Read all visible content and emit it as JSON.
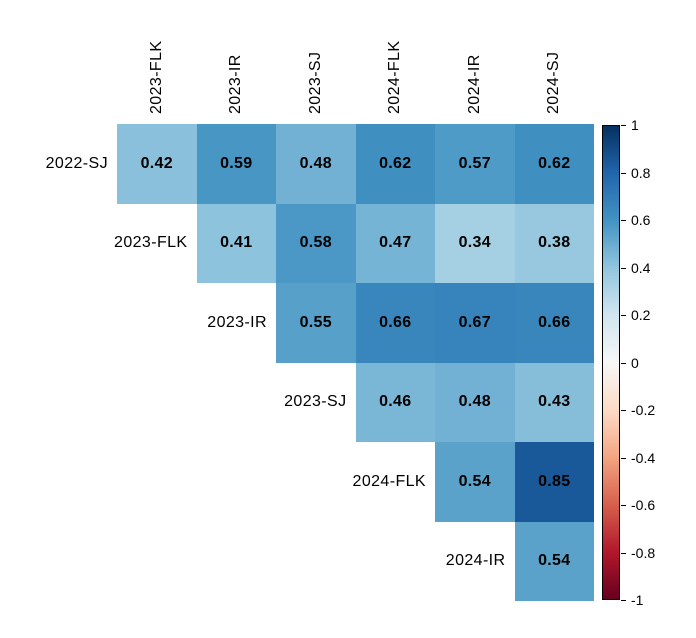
{
  "chart_data": {
    "type": "heatmap",
    "title": "",
    "description": "Upper-triangular correlation matrix heatmap with diverging red-white-blue colorbar",
    "col_labels": [
      "2023-FLK",
      "2023-IR",
      "2023-SJ",
      "2024-FLK",
      "2024-IR",
      "2024-SJ"
    ],
    "row_labels": [
      "2022-SJ",
      "2023-FLK",
      "2023-IR",
      "2023-SJ",
      "2024-FLK",
      "2024-IR"
    ],
    "matrix": [
      [
        0.42,
        0.59,
        0.48,
        0.62,
        0.57,
        0.62
      ],
      [
        null,
        0.41,
        0.58,
        0.47,
        0.34,
        0.38
      ],
      [
        null,
        null,
        0.55,
        0.66,
        0.67,
        0.66
      ],
      [
        null,
        null,
        null,
        0.46,
        0.48,
        0.43
      ],
      [
        null,
        null,
        null,
        null,
        0.54,
        0.85
      ],
      [
        null,
        null,
        null,
        null,
        null,
        0.54
      ]
    ],
    "value_decimals": 2,
    "grid": false,
    "legend_position": "right",
    "colorbar": {
      "range": [
        -1,
        1
      ],
      "tick_labels": [
        "1",
        "0.8",
        "0.6",
        "0.4",
        "0.2",
        "0",
        "-0.2",
        "-0.4",
        "-0.6",
        "-0.8",
        "-1"
      ]
    },
    "colormap": {
      "name": "RdBu",
      "anchors": [
        {
          "value": -1.0,
          "color": "#67001f"
        },
        {
          "value": -0.8,
          "color": "#b2182b"
        },
        {
          "value": -0.6,
          "color": "#d6604d"
        },
        {
          "value": -0.4,
          "color": "#f4a582"
        },
        {
          "value": -0.2,
          "color": "#fddbc7"
        },
        {
          "value": 0.0,
          "color": "#f7f7f7"
        },
        {
          "value": 0.2,
          "color": "#d1e5f0"
        },
        {
          "value": 0.4,
          "color": "#92c5de"
        },
        {
          "value": 0.6,
          "color": "#4393c3"
        },
        {
          "value": 0.8,
          "color": "#2166ac"
        },
        {
          "value": 1.0,
          "color": "#053061"
        }
      ]
    },
    "text_color": "#000000",
    "background_color": "#ffffff"
  }
}
